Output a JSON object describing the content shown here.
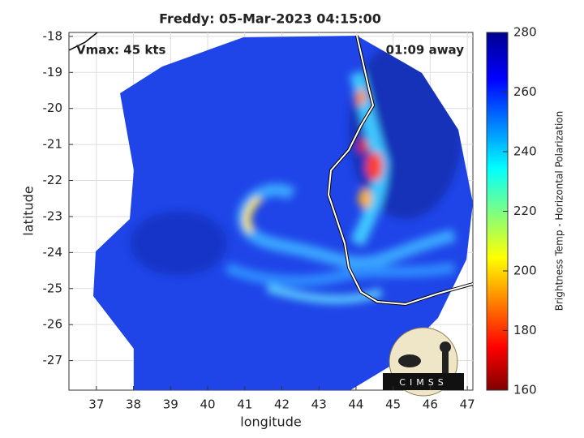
{
  "chart_data": {
    "type": "image",
    "title": "Freddy: 05-Mar-2023 04:15:00",
    "annotations": [
      "Vmax: 45 kts",
      "01:09 away"
    ],
    "xlabel": "longitude",
    "ylabel": "latitude",
    "xlim": [
      36.26,
      47.15
    ],
    "ylim": [
      -27.82,
      -17.89
    ],
    "xticks": [
      37,
      38,
      39,
      40,
      41,
      42,
      43,
      44,
      45,
      46,
      47
    ],
    "yticks": [
      -18,
      -19,
      -20,
      -21,
      -22,
      -23,
      -24,
      -25,
      -26,
      -27
    ],
    "grid": true,
    "colorbar": {
      "label": "Brightness Temp - Horizontal Polarization",
      "clim": [
        160,
        280
      ],
      "ticks": [
        160,
        180,
        200,
        220,
        240,
        260,
        280
      ]
    },
    "logo": "CIMSS"
  }
}
